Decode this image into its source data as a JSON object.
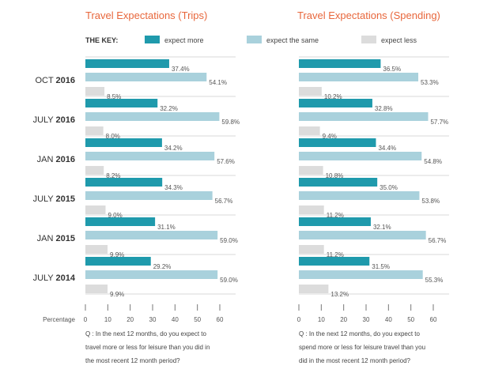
{
  "key": {
    "label": "THE KEY:",
    "items": [
      {
        "label": "expect more",
        "color": "#1f9aac"
      },
      {
        "label": "expect the same",
        "color": "#a9d1dc"
      },
      {
        "label": "expect less",
        "color": "#dcdcdc"
      }
    ]
  },
  "axis_label": "Percentage",
  "chart_data": [
    {
      "type": "bar",
      "title": "Travel Expectations (Trips)",
      "categories": [
        "OCT 2016",
        "JULY 2016",
        "JAN 2016",
        "JULY 2015",
        "JAN 2015",
        "JULY 2014"
      ],
      "series": [
        {
          "name": "expect more",
          "values": [
            37.4,
            32.2,
            34.2,
            34.3,
            31.1,
            29.2
          ]
        },
        {
          "name": "expect the same",
          "values": [
            54.1,
            59.8,
            57.6,
            56.7,
            59.0,
            59.0
          ]
        },
        {
          "name": "expect less",
          "values": [
            8.5,
            8.0,
            8.2,
            9.0,
            9.9,
            9.9
          ]
        }
      ],
      "xlabel": "Percentage",
      "xlim": [
        0,
        60
      ],
      "ticks": [
        0,
        10,
        20,
        30,
        40,
        50,
        60
      ],
      "note": [
        "Q : In the next 12 months, do you expect to",
        "travel more or less for leisure than you did in",
        "the most recent 12 month period?"
      ]
    },
    {
      "type": "bar",
      "title": "Travel Expectations (Spending)",
      "categories": [
        "OCT 2016",
        "JULY 2016",
        "JAN 2016",
        "JULY 2015",
        "JAN 2015",
        "JULY 2014"
      ],
      "series": [
        {
          "name": "expect more",
          "values": [
            36.5,
            32.8,
            34.4,
            35.0,
            32.1,
            31.5
          ]
        },
        {
          "name": "expect the same",
          "values": [
            53.3,
            57.7,
            54.8,
            53.8,
            56.7,
            55.3
          ]
        },
        {
          "name": "expect less",
          "values": [
            10.2,
            9.4,
            10.8,
            11.2,
            11.2,
            13.2
          ]
        }
      ],
      "xlim": [
        0,
        60
      ],
      "ticks": [
        0,
        10,
        20,
        30,
        40,
        50,
        60
      ],
      "note": [
        "Q : In the next 12 months, do you expect to",
        "spend more or less for leisure travel than you",
        "did in the most recent 12 month period?"
      ]
    }
  ],
  "colors": {
    "title": "#e8673c",
    "more": "#1f9aac",
    "same": "#a9d1dc",
    "less": "#dcdcdc",
    "tick": "#555555",
    "divider": "#cccccc"
  }
}
